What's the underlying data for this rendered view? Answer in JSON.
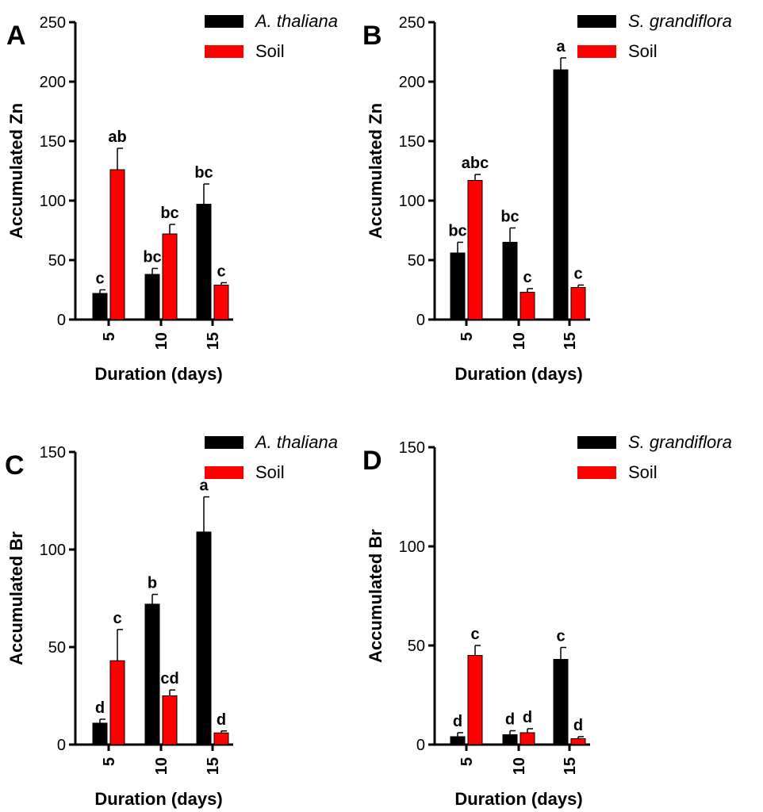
{
  "colors": {
    "plant": "#000000",
    "soil": "#ff0000"
  },
  "chart_data": [
    {
      "type": "bar",
      "panel": "A",
      "categories": [
        "5",
        "10",
        "15"
      ],
      "xlabel": "Duration (days)",
      "ylabel": "Accumulated Zn",
      "ylim": [
        0,
        250
      ],
      "yticks": [
        0,
        50,
        100,
        150,
        200,
        250
      ],
      "legend": "top-right",
      "series": [
        {
          "name": "A. thaliana",
          "italic": true,
          "color": "#000000",
          "values": [
            22,
            38,
            97
          ],
          "errors": [
            3,
            5,
            17
          ],
          "labels": [
            "c",
            "bc",
            "bc"
          ]
        },
        {
          "name": "Soil",
          "italic": false,
          "color": "#ff0000",
          "values": [
            126,
            72,
            29
          ],
          "errors": [
            18,
            8,
            2
          ],
          "labels": [
            "ab",
            "bc",
            "c"
          ]
        }
      ]
    },
    {
      "type": "bar",
      "panel": "B",
      "categories": [
        "5",
        "10",
        "15"
      ],
      "xlabel": "Duration (days)",
      "ylabel": "Accumulated Zn",
      "ylim": [
        0,
        250
      ],
      "yticks": [
        0,
        50,
        100,
        150,
        200,
        250
      ],
      "legend": "top-right",
      "series": [
        {
          "name": "S. grandiflora",
          "italic": true,
          "color": "#000000",
          "values": [
            56,
            65,
            210
          ],
          "errors": [
            9,
            12,
            10
          ],
          "labels": [
            "bc",
            "bc",
            "a"
          ]
        },
        {
          "name": "Soil",
          "italic": false,
          "color": "#ff0000",
          "values": [
            117,
            23,
            27
          ],
          "errors": [
            5,
            3,
            2
          ],
          "labels": [
            "abc",
            "c",
            "c"
          ]
        }
      ]
    },
    {
      "type": "bar",
      "panel": "C",
      "categories": [
        "5",
        "10",
        "15"
      ],
      "xlabel": "Duration (days)",
      "ylabel": "Accumulated Br",
      "ylim": [
        0,
        150
      ],
      "yticks": [
        0,
        50,
        100,
        150
      ],
      "legend": "top-right",
      "series": [
        {
          "name": "A. thaliana",
          "italic": true,
          "color": "#000000",
          "values": [
            11,
            72,
            109
          ],
          "errors": [
            2,
            5,
            18
          ],
          "labels": [
            "d",
            "b",
            "a"
          ]
        },
        {
          "name": "Soil",
          "italic": false,
          "color": "#ff0000",
          "values": [
            43,
            25,
            6
          ],
          "errors": [
            16,
            3,
            1
          ],
          "labels": [
            "c",
            "cd",
            "d"
          ]
        }
      ]
    },
    {
      "type": "bar",
      "panel": "D",
      "categories": [
        "5",
        "10",
        "15"
      ],
      "xlabel": "Duration (days)",
      "ylabel": "Accumulated Br",
      "ylim": [
        0,
        150
      ],
      "yticks": [
        0,
        50,
        100,
        150
      ],
      "legend": "top-right",
      "series": [
        {
          "name": "S. grandiflora",
          "italic": true,
          "color": "#000000",
          "values": [
            4,
            5,
            43
          ],
          "errors": [
            2,
            2,
            6
          ],
          "labels": [
            "d",
            "d",
            "c"
          ]
        },
        {
          "name": "Soil",
          "italic": false,
          "color": "#ff0000",
          "values": [
            45,
            6,
            3
          ],
          "errors": [
            5,
            2,
            1
          ],
          "labels": [
            "c",
            "d",
            "d"
          ]
        }
      ]
    }
  ]
}
